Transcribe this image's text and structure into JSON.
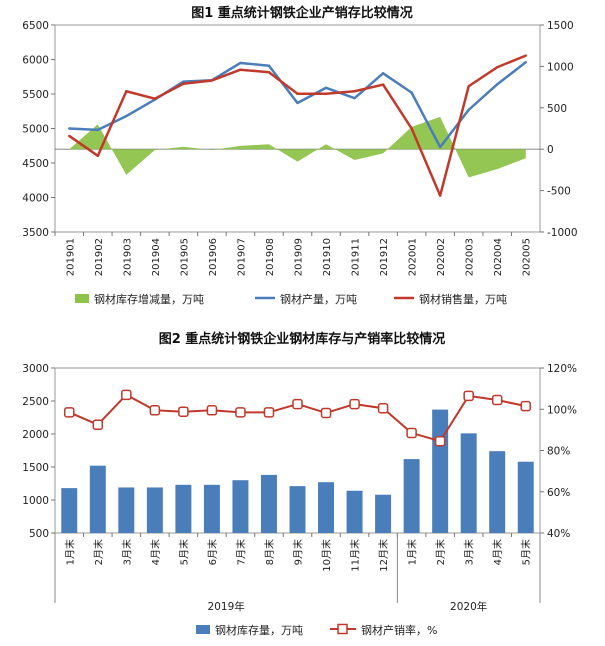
{
  "chart_data": [
    {
      "type": "line",
      "title": "图1  重点统计钢铁企业产销存比较情况",
      "categories": [
        "201901",
        "201902",
        "201903",
        "201904",
        "201905",
        "201906",
        "201907",
        "201908",
        "201909",
        "201910",
        "201911",
        "201912",
        "202001",
        "202002",
        "202003",
        "202004",
        "202005"
      ],
      "ylim_left": [
        3500,
        6500
      ],
      "yticks_left": [
        "3500",
        "4000",
        "4500",
        "5000",
        "5500",
        "6000",
        "6500"
      ],
      "ylim_right": [
        -1000,
        1500
      ],
      "yticks_right": [
        "-1000",
        "-500",
        "0",
        "500",
        "1000",
        "1500"
      ],
      "series": [
        {
          "name": "钢材库存增减量，万吨",
          "type": "area",
          "axis": "right",
          "color": "#8dc34a",
          "values": [
            0,
            300,
            -310,
            -10,
            30,
            -10,
            40,
            60,
            -150,
            60,
            -130,
            -50,
            270,
            390,
            -340,
            -240,
            -110
          ]
        },
        {
          "name": "钢材产量，万吨",
          "type": "line",
          "axis": "left",
          "color": "#4a7ebb",
          "values": [
            5000,
            4980,
            5180,
            5420,
            5680,
            5700,
            5950,
            5910,
            5370,
            5590,
            5440,
            5800,
            5520,
            4730,
            5270,
            5640,
            5960
          ]
        },
        {
          "name": "钢材销售量，万吨",
          "type": "line",
          "axis": "right",
          "color": "#c0392b",
          "values": [
            160,
            -80,
            700,
            610,
            790,
            830,
            960,
            930,
            670,
            670,
            700,
            780,
            250,
            -560,
            760,
            990,
            1130
          ]
        }
      ],
      "legend": "bottom"
    },
    {
      "type": "bar",
      "title": "图2  重点统计钢铁企业钢材库存与产销率比较情况",
      "categories": [
        "1月末",
        "2月末",
        "3月末",
        "4月末",
        "5月末",
        "6月末",
        "7月末",
        "8月末",
        "9月末",
        "10月末",
        "11月末",
        "12月末",
        "1月末",
        "2月末",
        "3月末",
        "4月末",
        "5月末"
      ],
      "year_groups": [
        {
          "label": "2019年",
          "count": 12
        },
        {
          "label": "2020年",
          "count": 5
        }
      ],
      "ylim_left": [
        500,
        3000
      ],
      "yticks_left": [
        "500",
        "1000",
        "1500",
        "2000",
        "2500",
        "3000"
      ],
      "ylim_right": [
        40,
        120
      ],
      "yticks_right": [
        "40%",
        "60%",
        "80%",
        "100%",
        "120%"
      ],
      "series": [
        {
          "name": "钢材库存量，万吨",
          "type": "bar",
          "axis": "left",
          "color": "#4a7ebb",
          "values": [
            1180,
            1520,
            1190,
            1190,
            1230,
            1230,
            1300,
            1380,
            1210,
            1270,
            1140,
            1080,
            1620,
            2370,
            2010,
            1740,
            1580
          ]
        },
        {
          "name": "钢材产销率，%",
          "type": "line",
          "axis": "right",
          "color": "#c0392b",
          "values": [
            98.5,
            92.5,
            107,
            99.5,
            98.8,
            99.5,
            98.5,
            98.5,
            102.5,
            98.2,
            102.5,
            100.5,
            88.5,
            84.5,
            106.5,
            104.5,
            101.5
          ]
        }
      ],
      "legend": "bottom"
    }
  ]
}
